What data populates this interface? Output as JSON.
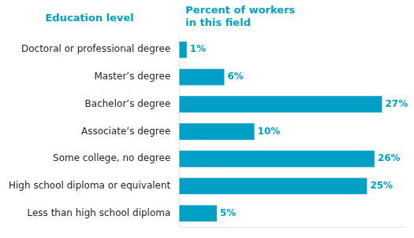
{
  "chart_data": {
    "type": "bar",
    "orientation": "horizontal",
    "xlabel": "Percent of workers\nin this field",
    "ylabel": "Education level",
    "categories": [
      "Less than high school diploma",
      "High school diploma or equivalent",
      "Some college, no degree",
      "Associate’s degree",
      "Bachelor’s degree",
      "Master’s degree",
      "Doctoral or professional degree"
    ],
    "values": [
      5,
      25,
      26,
      10,
      27,
      6,
      1
    ],
    "value_labels": [
      "5%",
      "25%",
      "26%",
      "10%",
      "27%",
      "6%",
      "1%"
    ],
    "color": "#00a0c6",
    "xlim": [
      0,
      30
    ],
    "grid": false,
    "tick_labels": "y",
    "data_labels": true
  }
}
